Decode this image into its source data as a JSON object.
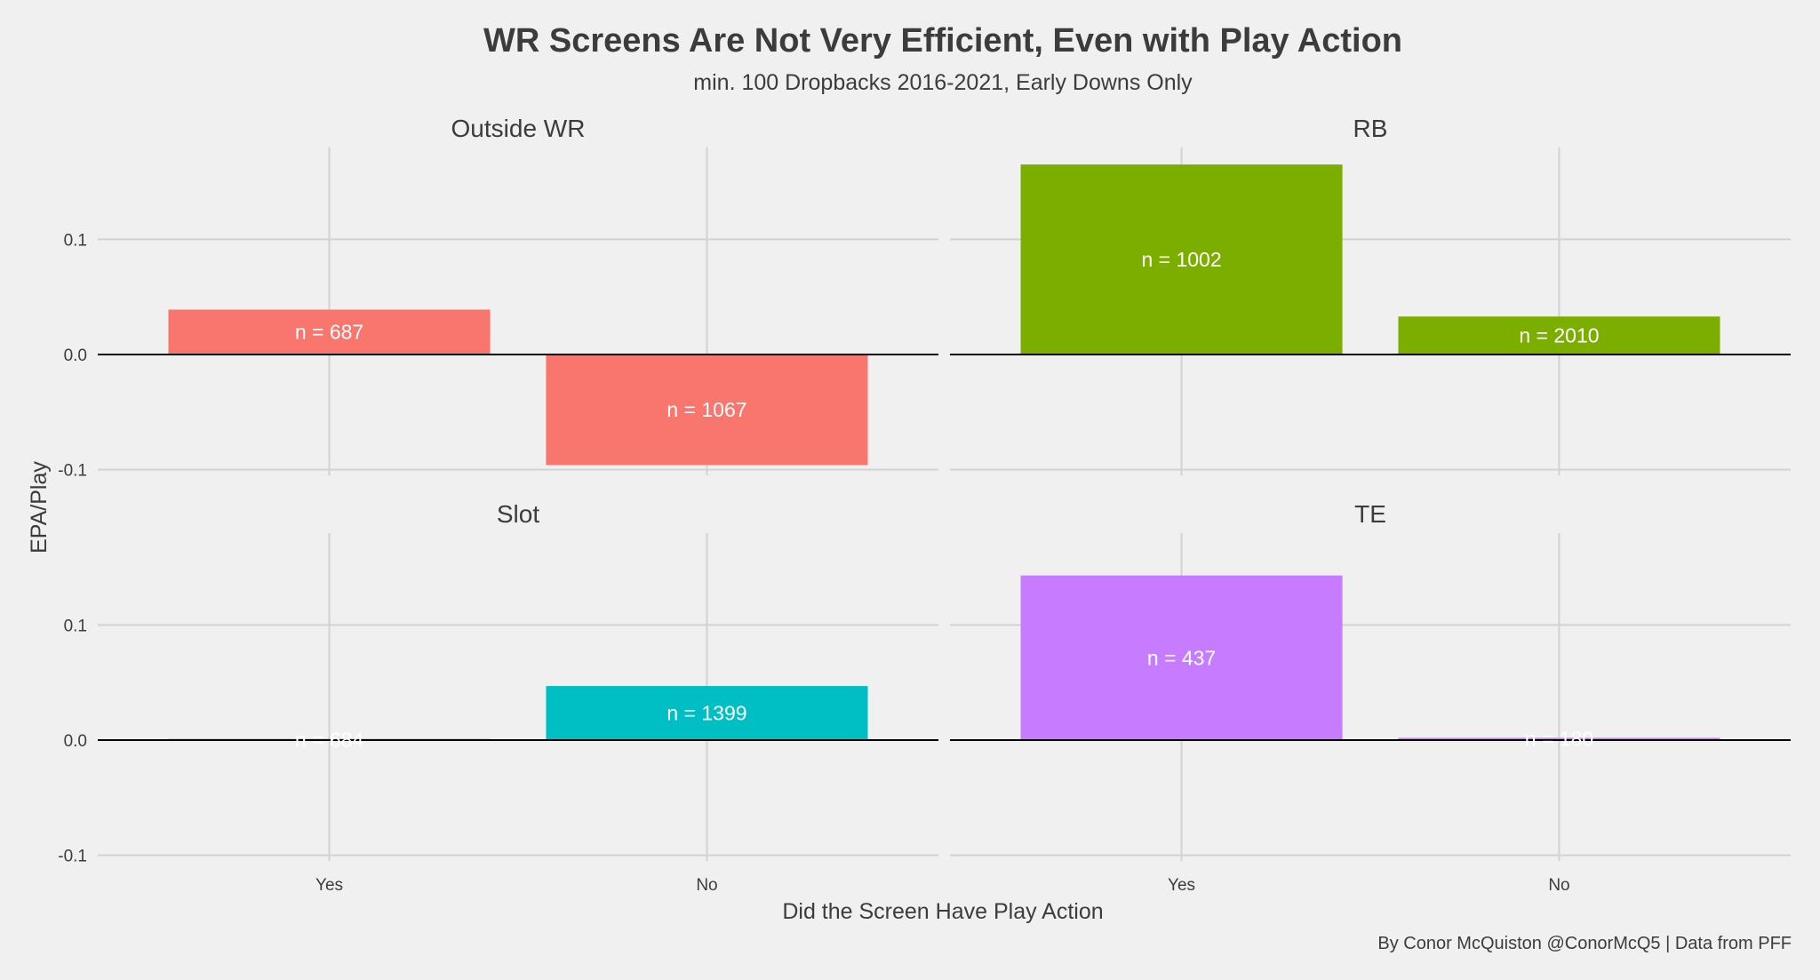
{
  "chart_data": {
    "type": "bar",
    "title": "WR Screens Are Not Very Efficient, Even with Play Action",
    "subtitle": "min. 100 Dropbacks 2016-2021, Early Downs Only",
    "xlabel": "Did the Screen Have Play Action",
    "ylabel": "EPA/Play",
    "caption": "By Conor McQuiston @ConorMcQ5 | Data from PFF",
    "categories": [
      "Yes",
      "No"
    ],
    "ylim": [
      -0.105,
      0.18
    ],
    "yticks": [
      -0.1,
      0.0,
      0.1
    ],
    "ytick_labels": [
      "-0.1",
      "0.0",
      "0.1"
    ],
    "grid": true,
    "panels": [
      {
        "name": "Outside WR",
        "color": "#F8766D",
        "values": [
          0.039,
          -0.096
        ],
        "labels": [
          "n = 687",
          "n = 1067"
        ]
      },
      {
        "name": "RB",
        "color": "#7CAE00",
        "values": [
          0.165,
          0.033
        ],
        "labels": [
          "n = 1002",
          "n = 2010"
        ]
      },
      {
        "name": "Slot",
        "color": "#00BFC4",
        "values": [
          0.001,
          0.047
        ],
        "labels": [
          "n = 684",
          "n = 1399"
        ]
      },
      {
        "name": "TE",
        "color": "#C77CFF",
        "values": [
          0.143,
          0.002
        ],
        "labels": [
          "n = 437",
          "n = 180"
        ]
      }
    ]
  }
}
